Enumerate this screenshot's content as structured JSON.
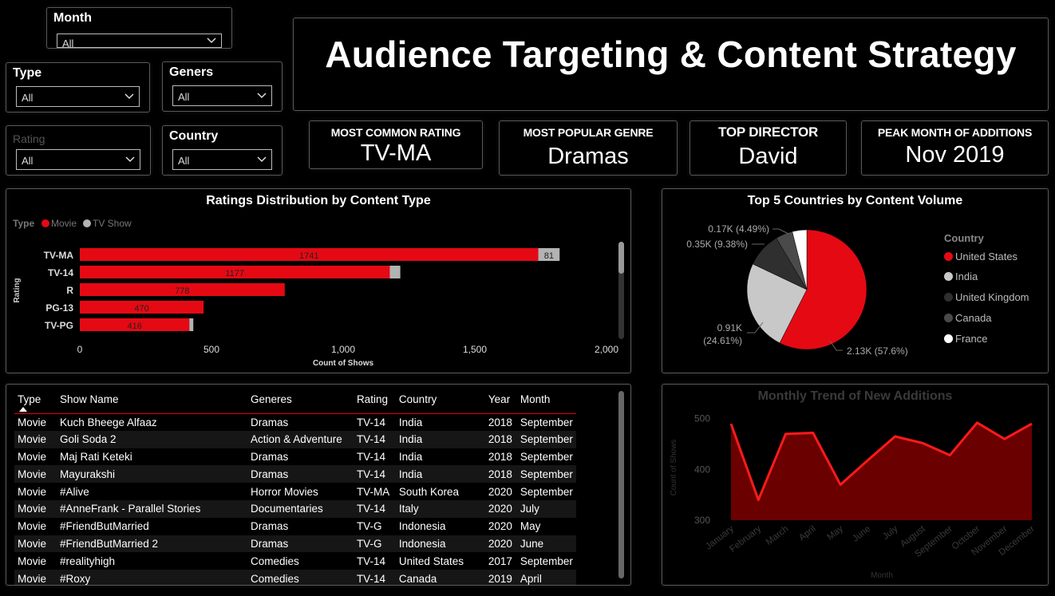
{
  "title": "Audience Targeting & Content Strategy",
  "slicers": {
    "month": {
      "label": "Month",
      "value": "All"
    },
    "type": {
      "label": "Type",
      "value": "All"
    },
    "genres": {
      "label": "Geners",
      "value": "All"
    },
    "rating": {
      "label": "Rating",
      "value": "All"
    },
    "country": {
      "label": "Country",
      "value": "All"
    }
  },
  "kpis": [
    {
      "label": "MOST COMMON RATING",
      "value": "TV-MA"
    },
    {
      "label": "MOST POPULAR GENRE",
      "value": "Dramas"
    },
    {
      "label": "TOP DIRECTOR",
      "value": "David"
    },
    {
      "label": "PEAK MONTH OF ADDITIONS",
      "value": "Nov 2019"
    }
  ],
  "colors": {
    "movie": "#e50914",
    "tv_show": "#b3b3b3",
    "line": "#ff1a1a",
    "area": "#6b0000"
  },
  "chart_data": [
    {
      "type": "bar",
      "title": "Ratings Distribution by Content Type",
      "xlabel": "Count of Shows",
      "ylabel": "Rating",
      "legend_title": "Type",
      "legend_position": "top-left",
      "categories": [
        "TV-MA",
        "TV-14",
        "R",
        "PG-13",
        "TV-PG"
      ],
      "series": [
        {
          "name": "Movie",
          "values": [
            1741,
            1177,
            778,
            470,
            416
          ],
          "labels": [
            "1741",
            "1177",
            "778",
            "470",
            "416"
          ]
        },
        {
          "name": "TV Show",
          "values": [
            81,
            40,
            0,
            0,
            15
          ],
          "labels": [
            "81",
            "",
            "",
            "",
            ""
          ]
        }
      ],
      "xlim": [
        0,
        2000
      ],
      "xticks": [
        "0",
        "500",
        "1,000",
        "1,500",
        "2,000"
      ]
    },
    {
      "type": "pie",
      "title": "Top 5 Countries by Content Volume",
      "legend_title": "Country",
      "legend_position": "right",
      "slices": [
        {
          "name": "United States",
          "value": 2130,
          "label": "2.13K (57.6%)",
          "color": "#e50914"
        },
        {
          "name": "India",
          "value": 910,
          "label_line1": "0.91K",
          "label_line2": "(24.61%)",
          "color": "#c8c8c8"
        },
        {
          "name": "United Kingdom",
          "value": 350,
          "label": "0.35K (9.38%)",
          "color": "#2f2f2f"
        },
        {
          "name": "Canada",
          "value": 170,
          "label": "0.17K (4.49%)",
          "color": "#4a4a4a"
        },
        {
          "name": "France",
          "value": 145,
          "color": "#ffffff"
        }
      ]
    },
    {
      "type": "area",
      "title": "Monthly Trend of New Additions",
      "xlabel": "Month",
      "ylabel": "Count of Shows",
      "categories": [
        "January",
        "February",
        "March",
        "April",
        "May",
        "June",
        "July",
        "August",
        "September",
        "October",
        "November",
        "December"
      ],
      "values": [
        490,
        340,
        470,
        472,
        370,
        418,
        465,
        452,
        428,
        492,
        460,
        490
      ],
      "ylim": [
        300,
        520
      ],
      "yticks": [
        300,
        400,
        500
      ]
    }
  ],
  "table": {
    "columns": [
      "Type",
      "Show Name",
      "Generes",
      "Rating",
      "Country",
      "Year",
      "Month"
    ],
    "rows": [
      [
        "Movie",
        "Kuch Bheege Alfaaz",
        "Dramas",
        "TV-14",
        "India",
        "2018",
        "September"
      ],
      [
        "Movie",
        "Goli Soda 2",
        "Action & Adventure",
        "TV-14",
        "India",
        "2018",
        "September"
      ],
      [
        "Movie",
        "Maj Rati Keteki",
        "Dramas",
        "TV-14",
        "India",
        "2018",
        "September"
      ],
      [
        "Movie",
        "Mayurakshi",
        "Dramas",
        "TV-14",
        "India",
        "2018",
        "September"
      ],
      [
        "Movie",
        "#Alive",
        "Horror Movies",
        "TV-MA",
        "South Korea",
        "2020",
        "September"
      ],
      [
        "Movie",
        "#AnneFrank - Parallel Stories",
        "Documentaries",
        "TV-14",
        "Italy",
        "2020",
        "July"
      ],
      [
        "Movie",
        "#FriendButMarried",
        "Dramas",
        "TV-G",
        "Indonesia",
        "2020",
        "May"
      ],
      [
        "Movie",
        "#FriendButMarried 2",
        "Dramas",
        "TV-G",
        "Indonesia",
        "2020",
        "June"
      ],
      [
        "Movie",
        "#realityhigh",
        "Comedies",
        "TV-14",
        "United States",
        "2017",
        "September"
      ],
      [
        "Movie",
        "#Roxy",
        "Comedies",
        "TV-14",
        "Canada",
        "2019",
        "April"
      ]
    ]
  }
}
